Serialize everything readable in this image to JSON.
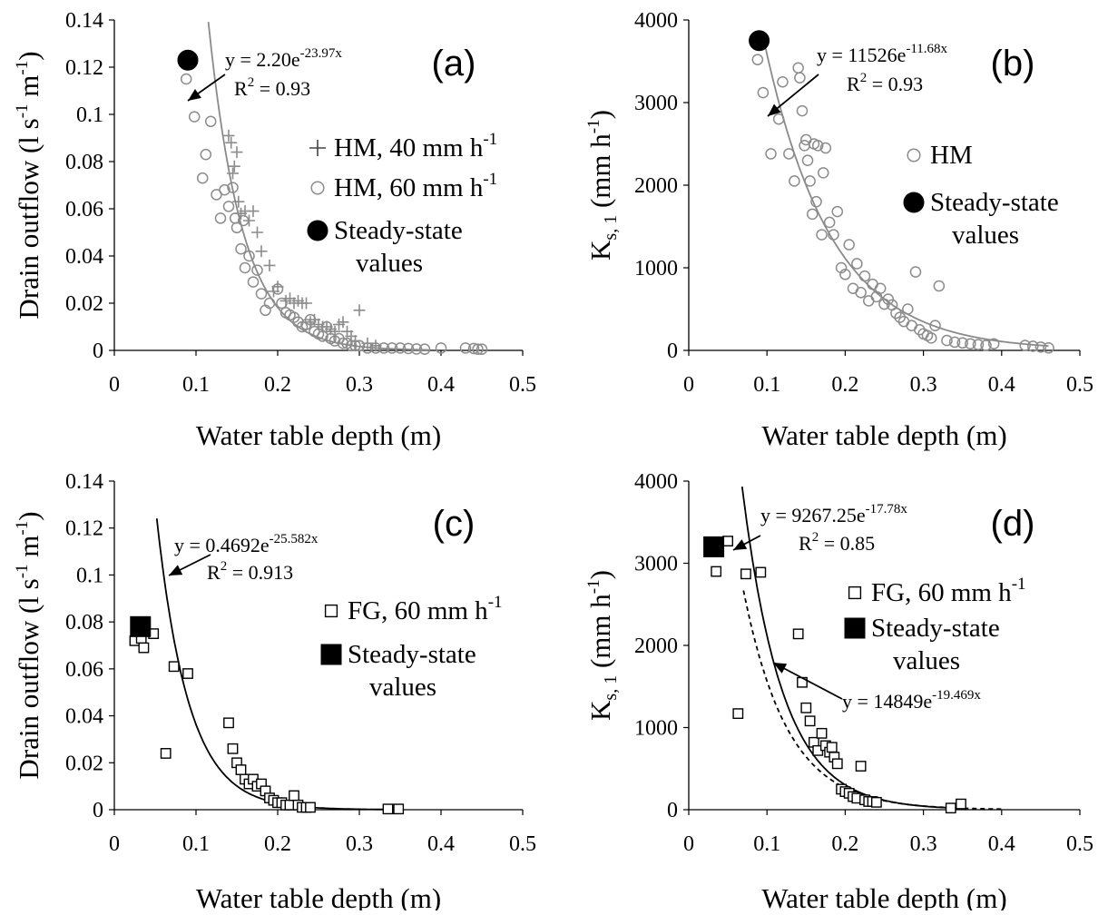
{
  "chart_data": [
    {
      "id": "a",
      "type": "scatter",
      "panel_label": "(a)",
      "xlabel": "Water table depth (m)",
      "ylabel": "Drain outflow (l s⁻¹ m⁻¹)",
      "ylabel_parts": {
        "base": "Drain outflow (l s",
        "sup1": "-1",
        "mid": " m",
        "sup2": "-1",
        "end": ")"
      },
      "xlim": [
        0,
        0.5
      ],
      "ylim": [
        0,
        0.14
      ],
      "xticks": [
        "0",
        "0.1",
        "0.2",
        "0.3",
        "0.4",
        "0.5"
      ],
      "yticks": [
        "0",
        "0.02",
        "0.04",
        "0.06",
        "0.08",
        "0.1",
        "0.12",
        "0.14"
      ],
      "grid": false,
      "legend": [
        {
          "marker": "plus",
          "text": "HM, 40 mm h",
          "sup": "-1"
        },
        {
          "marker": "circle-open",
          "text": "HM, 60 mm h",
          "sup": "-1"
        },
        {
          "marker": "circle-filled",
          "lines": [
            "Steady-state",
            "values"
          ]
        }
      ],
      "equations": [
        {
          "lines": [
            {
              "base": "y = 2.20e",
              "sup": "-23.97x"
            },
            {
              "base": "R",
              "sup": "2",
              "end": " = 0.93"
            }
          ]
        }
      ],
      "fits": [
        {
          "a": 2.2,
          "b": -23.97,
          "x_range": [
            0.11,
            0.385
          ],
          "color": "#8a8a8a",
          "dash": "solid"
        }
      ],
      "series": [
        {
          "name": "HM, 40 mm h-1",
          "marker": "plus",
          "color": "#8c8c8c",
          "x": [
            0.14,
            0.143,
            0.145,
            0.147,
            0.15,
            0.152,
            0.155,
            0.16,
            0.165,
            0.17,
            0.175,
            0.18,
            0.19,
            0.195,
            0.2,
            0.21,
            0.215,
            0.22,
            0.225,
            0.23,
            0.235,
            0.24,
            0.245,
            0.25,
            0.255,
            0.26,
            0.265,
            0.27,
            0.275,
            0.28,
            0.285,
            0.29,
            0.295,
            0.3,
            0.31,
            0.32
          ],
          "y": [
            0.091,
            0.088,
            0.075,
            0.078,
            0.084,
            0.063,
            0.058,
            0.059,
            0.055,
            0.059,
            0.05,
            0.042,
            0.036,
            0.025,
            0.027,
            0.021,
            0.022,
            0.02,
            0.021,
            0.02,
            0.02,
            0.012,
            0.013,
            0.011,
            0.01,
            0.01,
            0.009,
            0.008,
            0.011,
            0.012,
            0.008,
            0.006,
            0.004,
            0.017,
            0.003,
            0.002
          ]
        },
        {
          "name": "HM, 60 mm h-1",
          "marker": "circle-open",
          "color": "#8c8c8c",
          "x": [
            0.088,
            0.098,
            0.108,
            0.112,
            0.118,
            0.125,
            0.13,
            0.135,
            0.14,
            0.145,
            0.148,
            0.15,
            0.155,
            0.158,
            0.16,
            0.165,
            0.17,
            0.175,
            0.18,
            0.185,
            0.19,
            0.2,
            0.205,
            0.21,
            0.215,
            0.22,
            0.225,
            0.23,
            0.235,
            0.24,
            0.245,
            0.25,
            0.255,
            0.26,
            0.265,
            0.27,
            0.275,
            0.28,
            0.285,
            0.29,
            0.295,
            0.3,
            0.31,
            0.32,
            0.33,
            0.34,
            0.35,
            0.36,
            0.37,
            0.38,
            0.4,
            0.43,
            0.44,
            0.445,
            0.45
          ],
          "y": [
            0.115,
            0.099,
            0.073,
            0.083,
            0.097,
            0.066,
            0.056,
            0.068,
            0.061,
            0.069,
            0.056,
            0.052,
            0.043,
            0.055,
            0.035,
            0.04,
            0.029,
            0.034,
            0.024,
            0.017,
            0.02,
            0.026,
            0.02,
            0.016,
            0.015,
            0.014,
            0.012,
            0.01,
            0.011,
            0.013,
            0.008,
            0.007,
            0.006,
            0.01,
            0.005,
            0.004,
            0.005,
            0.003,
            0.003,
            0.002,
            0.002,
            0.002,
            0.001,
            0.001,
            0.001,
            0.001,
            0.001,
            0.0008,
            0.0006,
            0.0005,
            0.001,
            0.001,
            0.0008,
            0.0005,
            0.0005
          ]
        },
        {
          "name": "Steady-state values",
          "marker": "circle-filled",
          "color": "#000000",
          "x": [
            0.09
          ],
          "y": [
            0.123
          ]
        }
      ]
    },
    {
      "id": "b",
      "type": "scatter",
      "panel_label": "(b)",
      "xlabel": "Water table depth (m)",
      "ylabel": "K s,1 (mm h⁻¹)",
      "ylabel_parts": {
        "base": "K",
        "sub": "s, 1",
        "mid": " (mm h",
        "sup2": "-1",
        "end": ")"
      },
      "xlim": [
        0,
        0.5
      ],
      "ylim": [
        0,
        4000
      ],
      "xticks": [
        "0",
        "0.1",
        "0.2",
        "0.3",
        "0.4",
        "0.5"
      ],
      "yticks": [
        "0",
        "1000",
        "2000",
        "3000",
        "4000"
      ],
      "grid": false,
      "legend": [
        {
          "marker": "circle-open",
          "text": "HM"
        },
        {
          "marker": "circle-filled",
          "lines": [
            "Steady-state",
            "values"
          ]
        }
      ],
      "equations": [
        {
          "lines": [
            {
              "base": "y = 11526e",
              "sup": "-11.68x"
            },
            {
              "base": "R",
              "sup": "2",
              "end": " = 0.93"
            }
          ]
        }
      ],
      "fits": [
        {
          "a": 11526,
          "b": -11.68,
          "x_range": [
            0.095,
            0.46
          ],
          "color": "#8a8a8a",
          "dash": "solid"
        }
      ],
      "series": [
        {
          "name": "HM",
          "marker": "circle-open",
          "color": "#8c8c8c",
          "x": [
            0.088,
            0.095,
            0.105,
            0.115,
            0.12,
            0.128,
            0.135,
            0.14,
            0.142,
            0.145,
            0.148,
            0.15,
            0.152,
            0.155,
            0.158,
            0.16,
            0.163,
            0.165,
            0.17,
            0.172,
            0.175,
            0.18,
            0.185,
            0.19,
            0.195,
            0.2,
            0.205,
            0.21,
            0.215,
            0.22,
            0.225,
            0.23,
            0.235,
            0.24,
            0.245,
            0.25,
            0.255,
            0.26,
            0.265,
            0.27,
            0.275,
            0.28,
            0.285,
            0.29,
            0.295,
            0.3,
            0.305,
            0.31,
            0.315,
            0.32,
            0.33,
            0.34,
            0.35,
            0.36,
            0.37,
            0.38,
            0.39,
            0.43,
            0.44,
            0.45,
            0.46
          ],
          "y": [
            3520,
            3120,
            2380,
            2800,
            3250,
            2380,
            2050,
            3420,
            3300,
            2900,
            2480,
            2550,
            2300,
            2050,
            1650,
            2500,
            1800,
            2480,
            1400,
            2150,
            2450,
            1550,
            1400,
            1680,
            1000,
            920,
            1280,
            750,
            1050,
            700,
            900,
            600,
            800,
            650,
            750,
            560,
            620,
            550,
            450,
            400,
            350,
            500,
            300,
            950,
            250,
            200,
            180,
            150,
            300,
            780,
            120,
            100,
            90,
            80,
            70,
            60,
            80,
            60,
            50,
            40,
            30
          ]
        },
        {
          "name": "Steady-state values",
          "marker": "circle-filled",
          "color": "#000000",
          "x": [
            0.09
          ],
          "y": [
            3750
          ]
        }
      ]
    },
    {
      "id": "c",
      "type": "scatter",
      "panel_label": "(c)",
      "xlabel": "Water table depth (m)",
      "ylabel": "Drain outflow (l s⁻¹ m⁻¹)",
      "ylabel_parts": {
        "base": "Drain outflow (l s",
        "sup1": "-1",
        "mid": " m",
        "sup2": "-1",
        "end": ")"
      },
      "xlim": [
        0,
        0.5
      ],
      "ylim": [
        0,
        0.14
      ],
      "xticks": [
        "0",
        "0.1",
        "0.2",
        "0.3",
        "0.4",
        "0.5"
      ],
      "yticks": [
        "0",
        "0.02",
        "0.04",
        "0.06",
        "0.08",
        "0.1",
        "0.12",
        "0.14"
      ],
      "grid": false,
      "legend": [
        {
          "marker": "square-open",
          "text": "FG, 60 mm h",
          "sup": "-1"
        },
        {
          "marker": "square-filled",
          "lines": [
            "Steady-state",
            "values"
          ]
        }
      ],
      "equations": [
        {
          "lines": [
            {
              "base": "y = 0.4692e",
              "sup": "-25.582x"
            },
            {
              "base": "R",
              "sup": "2",
              "end": " = 0.913"
            }
          ]
        }
      ],
      "fits": [
        {
          "a": 0.4692,
          "b": -25.582,
          "x_range": [
            0.052,
            0.34
          ],
          "color": "#000000",
          "dash": "solid"
        }
      ],
      "series": [
        {
          "name": "FG, 60 mm h-1",
          "marker": "square-open",
          "color": "#000000",
          "x": [
            0.025,
            0.033,
            0.036,
            0.048,
            0.063,
            0.073,
            0.09,
            0.14,
            0.145,
            0.15,
            0.155,
            0.16,
            0.165,
            0.17,
            0.175,
            0.18,
            0.185,
            0.19,
            0.195,
            0.2,
            0.205,
            0.21,
            0.215,
            0.22,
            0.225,
            0.23,
            0.235,
            0.24,
            0.335,
            0.348
          ],
          "y": [
            0.072,
            0.073,
            0.069,
            0.075,
            0.024,
            0.061,
            0.058,
            0.037,
            0.026,
            0.02,
            0.017,
            0.013,
            0.011,
            0.013,
            0.01,
            0.011,
            0.008,
            0.005,
            0.004,
            0.003,
            0.003,
            0.002,
            0.002,
            0.006,
            0.002,
            0.001,
            0.001,
            0.001,
            0.0003,
            0.0003
          ]
        },
        {
          "name": "Steady-state values",
          "marker": "square-filled",
          "color": "#000000",
          "x": [
            0.032
          ],
          "y": [
            0.078
          ]
        }
      ]
    },
    {
      "id": "d",
      "type": "scatter",
      "panel_label": "(d)",
      "xlabel": "Water table depth (m)",
      "ylabel": "K s,1 (mm h⁻¹)",
      "ylabel_parts": {
        "base": "K",
        "sub": "s, 1",
        "mid": " (mm h",
        "sup2": "-1",
        "end": ")"
      },
      "xlim": [
        0,
        0.5
      ],
      "ylim": [
        0,
        4000
      ],
      "xticks": [
        "0",
        "0.1",
        "0.2",
        "0.3",
        "0.4",
        "0.5"
      ],
      "yticks": [
        "0",
        "1000",
        "2000",
        "3000",
        "4000"
      ],
      "grid": false,
      "legend": [
        {
          "marker": "square-open",
          "text": "FG, 60 mm h",
          "sup": "-1"
        },
        {
          "marker": "square-filled",
          "lines": [
            "Steady-state",
            "values"
          ]
        }
      ],
      "equations": [
        {
          "lines": [
            {
              "base": "y = 9267.25e",
              "sup": "-17.78x"
            },
            {
              "base": "R",
              "sup": "2",
              "end": " = 0.85"
            }
          ]
        },
        {
          "lines": [
            {
              "base": "y = 14849e",
              "sup": "-19.469x"
            }
          ]
        }
      ],
      "fits": [
        {
          "a": 14849,
          "b": -19.469,
          "x_range": [
            0.045,
            0.355
          ],
          "color": "#000000",
          "dash": "solid"
        },
        {
          "a": 9267.25,
          "b": -17.78,
          "x_range": [
            0.07,
            0.4
          ],
          "color": "#000000",
          "dash": "dashed"
        }
      ],
      "series": [
        {
          "name": "FG, 60 mm h-1",
          "marker": "square-open",
          "color": "#000000",
          "x": [
            0.035,
            0.05,
            0.063,
            0.073,
            0.092,
            0.14,
            0.145,
            0.15,
            0.155,
            0.16,
            0.165,
            0.17,
            0.175,
            0.18,
            0.183,
            0.186,
            0.19,
            0.195,
            0.2,
            0.205,
            0.21,
            0.215,
            0.22,
            0.225,
            0.23,
            0.235,
            0.24,
            0.335,
            0.348
          ],
          "y": [
            2900,
            3270,
            1170,
            2870,
            2890,
            2140,
            1550,
            1240,
            1080,
            820,
            720,
            930,
            780,
            700,
            760,
            640,
            560,
            250,
            220,
            200,
            160,
            140,
            530,
            120,
            100,
            100,
            90,
            20,
            70
          ]
        },
        {
          "name": "Steady-state values",
          "marker": "square-filled",
          "color": "#000000",
          "x": [
            0.032
          ],
          "y": [
            3200
          ]
        }
      ]
    }
  ]
}
